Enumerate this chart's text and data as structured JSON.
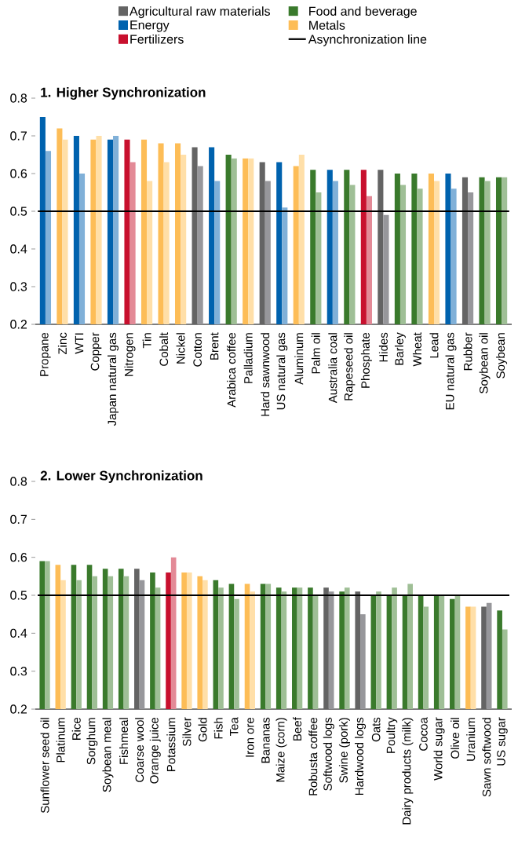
{
  "chart_data": [
    {
      "type": "bar",
      "title": "1. Higher Synchronization",
      "legend": "top",
      "categories": [
        "Propane",
        "Zinc",
        "WTI",
        "Copper",
        "Japan natural gas",
        "Nitrogen",
        "Tin",
        "Cobalt",
        "Nickel",
        "Cotton",
        "Brent",
        "Arabica coffee",
        "Palladium",
        "Hard sawnwood",
        "US natural gas",
        "Aluminum",
        "Palm oil",
        "Australia coal",
        "Rapeseed oil",
        "Phosphate",
        "Hides",
        "Barley",
        "Wheat",
        "Lead",
        "EU natural gas",
        "Rubber",
        "Soybean oil",
        "Soybean"
      ],
      "ylim": [
        0.2,
        0.8
      ],
      "yticks": [
        0.2,
        0.3,
        0.4,
        0.5,
        0.6,
        0.7,
        0.8
      ],
      "series": [
        {
          "name": "Agricultural raw materials",
          "color": "#646464",
          "values": [
            null,
            null,
            null,
            null,
            null,
            null,
            null,
            null,
            null,
            0.67,
            null,
            null,
            null,
            0.63,
            null,
            null,
            null,
            null,
            null,
            null,
            0.61,
            null,
            null,
            null,
            null,
            0.59,
            null,
            null
          ]
        },
        {
          "color": "#97979b",
          "values": [
            null,
            null,
            null,
            null,
            null,
            null,
            null,
            null,
            null,
            0.62,
            null,
            null,
            null,
            0.58,
            null,
            null,
            null,
            null,
            null,
            null,
            0.49,
            null,
            null,
            null,
            null,
            0.55,
            null,
            null
          ]
        },
        {
          "name": "Food and beverage",
          "color": "#3a7a2c",
          "values": [
            null,
            null,
            null,
            null,
            null,
            null,
            null,
            null,
            null,
            null,
            null,
            0.65,
            null,
            null,
            null,
            null,
            0.61,
            null,
            0.61,
            null,
            null,
            0.6,
            0.6,
            null,
            null,
            null,
            0.59,
            0.59
          ]
        },
        {
          "color": "#9fbf96",
          "values": [
            null,
            null,
            null,
            null,
            null,
            null,
            null,
            null,
            null,
            null,
            null,
            0.64,
            null,
            null,
            null,
            null,
            0.55,
            null,
            0.57,
            null,
            null,
            0.57,
            0.56,
            null,
            null,
            null,
            0.58,
            0.59
          ]
        },
        {
          "name": "Energy",
          "color": "#0062ae",
          "values": [
            0.75,
            null,
            0.7,
            null,
            0.69,
            null,
            null,
            null,
            null,
            null,
            0.67,
            null,
            null,
            null,
            0.63,
            null,
            null,
            0.61,
            null,
            null,
            null,
            null,
            null,
            null,
            0.6,
            null,
            null,
            null
          ]
        },
        {
          "color": "#80b0d8",
          "values": [
            0.66,
            null,
            0.6,
            null,
            0.7,
            null,
            null,
            null,
            null,
            null,
            0.58,
            null,
            null,
            null,
            0.51,
            null,
            null,
            0.58,
            null,
            null,
            null,
            null,
            null,
            null,
            0.56,
            null,
            null,
            null
          ]
        },
        {
          "name": "Metals",
          "color": "#fdbd57",
          "values": [
            null,
            0.72,
            null,
            0.69,
            null,
            null,
            0.69,
            0.68,
            0.68,
            null,
            null,
            null,
            0.64,
            null,
            null,
            0.62,
            null,
            null,
            null,
            null,
            null,
            null,
            null,
            0.6,
            null,
            null,
            null,
            null
          ]
        },
        {
          "color": "#ffdfa8",
          "values": [
            null,
            0.69,
            null,
            0.7,
            null,
            null,
            0.58,
            0.63,
            0.65,
            null,
            null,
            null,
            0.64,
            null,
            null,
            0.65,
            null,
            null,
            null,
            null,
            null,
            null,
            null,
            0.58,
            null,
            null,
            null,
            null
          ]
        },
        {
          "name": "Fertilizers",
          "color": "#c8102e",
          "values": [
            null,
            null,
            null,
            null,
            null,
            0.69,
            null,
            null,
            null,
            null,
            null,
            null,
            null,
            null,
            null,
            null,
            null,
            null,
            null,
            0.61,
            null,
            null,
            null,
            null,
            null,
            null,
            null,
            null
          ]
        },
        {
          "color": "#e38a97",
          "values": [
            null,
            null,
            null,
            null,
            null,
            0.63,
            null,
            null,
            null,
            null,
            null,
            null,
            null,
            null,
            null,
            null,
            null,
            null,
            null,
            0.54,
            null,
            null,
            null,
            null,
            null,
            null,
            null,
            null
          ]
        }
      ],
      "ref_lines": [
        {
          "axis": "y",
          "value": 0.5,
          "label": "Asynchronization line",
          "color": "#000000"
        }
      ]
    },
    {
      "type": "bar",
      "title": "2. Lower Synchronization",
      "categories": [
        "Sunflower seed oil",
        "Platinum",
        "Rice",
        "Sorghum",
        "Soybean meal",
        "Fishmeal",
        "Coarse wool",
        "Orange juice",
        "Potassium",
        "Silver",
        "Gold",
        "Fish",
        "Tea",
        "Iron ore",
        "Bananas",
        "Maize (corn)",
        "Beef",
        "Robusta coffee",
        "Softwood logs",
        "Swine (pork)",
        "Hardwood logs",
        "Oats",
        "Poultry",
        "Dairy products (milk)",
        "Cocoa",
        "World sugar",
        "Olive oil",
        "Uranium",
        "Sawn softwood",
        "US sugar"
      ],
      "ylim": [
        0.2,
        0.8
      ],
      "yticks": [
        0.2,
        0.3,
        0.4,
        0.5,
        0.6,
        0.7,
        0.8
      ],
      "series": [
        {
          "color": "#646464",
          "values": [
            null,
            null,
            null,
            null,
            null,
            null,
            0.57,
            null,
            null,
            null,
            null,
            null,
            null,
            null,
            null,
            null,
            null,
            null,
            0.52,
            null,
            0.51,
            null,
            null,
            null,
            null,
            null,
            null,
            null,
            0.47,
            null
          ]
        },
        {
          "color": "#97979b",
          "values": [
            null,
            null,
            null,
            null,
            null,
            null,
            0.54,
            null,
            null,
            null,
            null,
            null,
            null,
            null,
            null,
            null,
            null,
            null,
            0.51,
            null,
            0.45,
            null,
            null,
            null,
            null,
            null,
            null,
            null,
            0.48,
            null
          ]
        },
        {
          "color": "#3a7a2c",
          "values": [
            0.59,
            null,
            0.58,
            0.58,
            0.57,
            0.57,
            null,
            0.56,
            null,
            null,
            null,
            0.54,
            0.53,
            null,
            0.53,
            0.52,
            0.52,
            0.52,
            null,
            0.51,
            null,
            0.5,
            0.5,
            0.5,
            0.5,
            0.5,
            0.49,
            null,
            null,
            0.46
          ]
        },
        {
          "color": "#9fbf96",
          "values": [
            0.59,
            null,
            0.54,
            0.55,
            0.55,
            0.55,
            null,
            0.52,
            null,
            null,
            null,
            0.52,
            0.49,
            null,
            0.53,
            0.51,
            0.52,
            0.5,
            null,
            0.52,
            null,
            0.51,
            0.52,
            0.53,
            0.47,
            0.5,
            0.5,
            null,
            null,
            0.41
          ]
        },
        {
          "color": "#fdbd57",
          "values": [
            null,
            0.58,
            null,
            null,
            null,
            null,
            null,
            null,
            null,
            0.56,
            0.55,
            null,
            null,
            0.53,
            null,
            null,
            null,
            null,
            null,
            null,
            null,
            null,
            null,
            null,
            null,
            null,
            null,
            0.47,
            null,
            null
          ]
        },
        {
          "color": "#ffdfa8",
          "values": [
            null,
            0.54,
            null,
            null,
            null,
            null,
            null,
            null,
            null,
            0.56,
            0.54,
            null,
            null,
            0.51,
            null,
            null,
            null,
            null,
            null,
            null,
            null,
            null,
            null,
            null,
            null,
            null,
            null,
            0.47,
            null,
            null
          ]
        },
        {
          "color": "#c8102e",
          "values": [
            null,
            null,
            null,
            null,
            null,
            null,
            null,
            null,
            0.56,
            null,
            null,
            null,
            null,
            null,
            null,
            null,
            null,
            null,
            null,
            null,
            null,
            null,
            null,
            null,
            null,
            null,
            null,
            null,
            null,
            null
          ]
        },
        {
          "color": "#e38a97",
          "values": [
            null,
            null,
            null,
            null,
            null,
            null,
            null,
            null,
            0.6,
            null,
            null,
            null,
            null,
            null,
            null,
            null,
            null,
            null,
            null,
            null,
            null,
            null,
            null,
            null,
            null,
            null,
            null,
            null,
            null,
            null
          ]
        }
      ],
      "ref_lines": [
        {
          "axis": "y",
          "value": 0.5,
          "color": "#000000"
        }
      ]
    }
  ]
}
